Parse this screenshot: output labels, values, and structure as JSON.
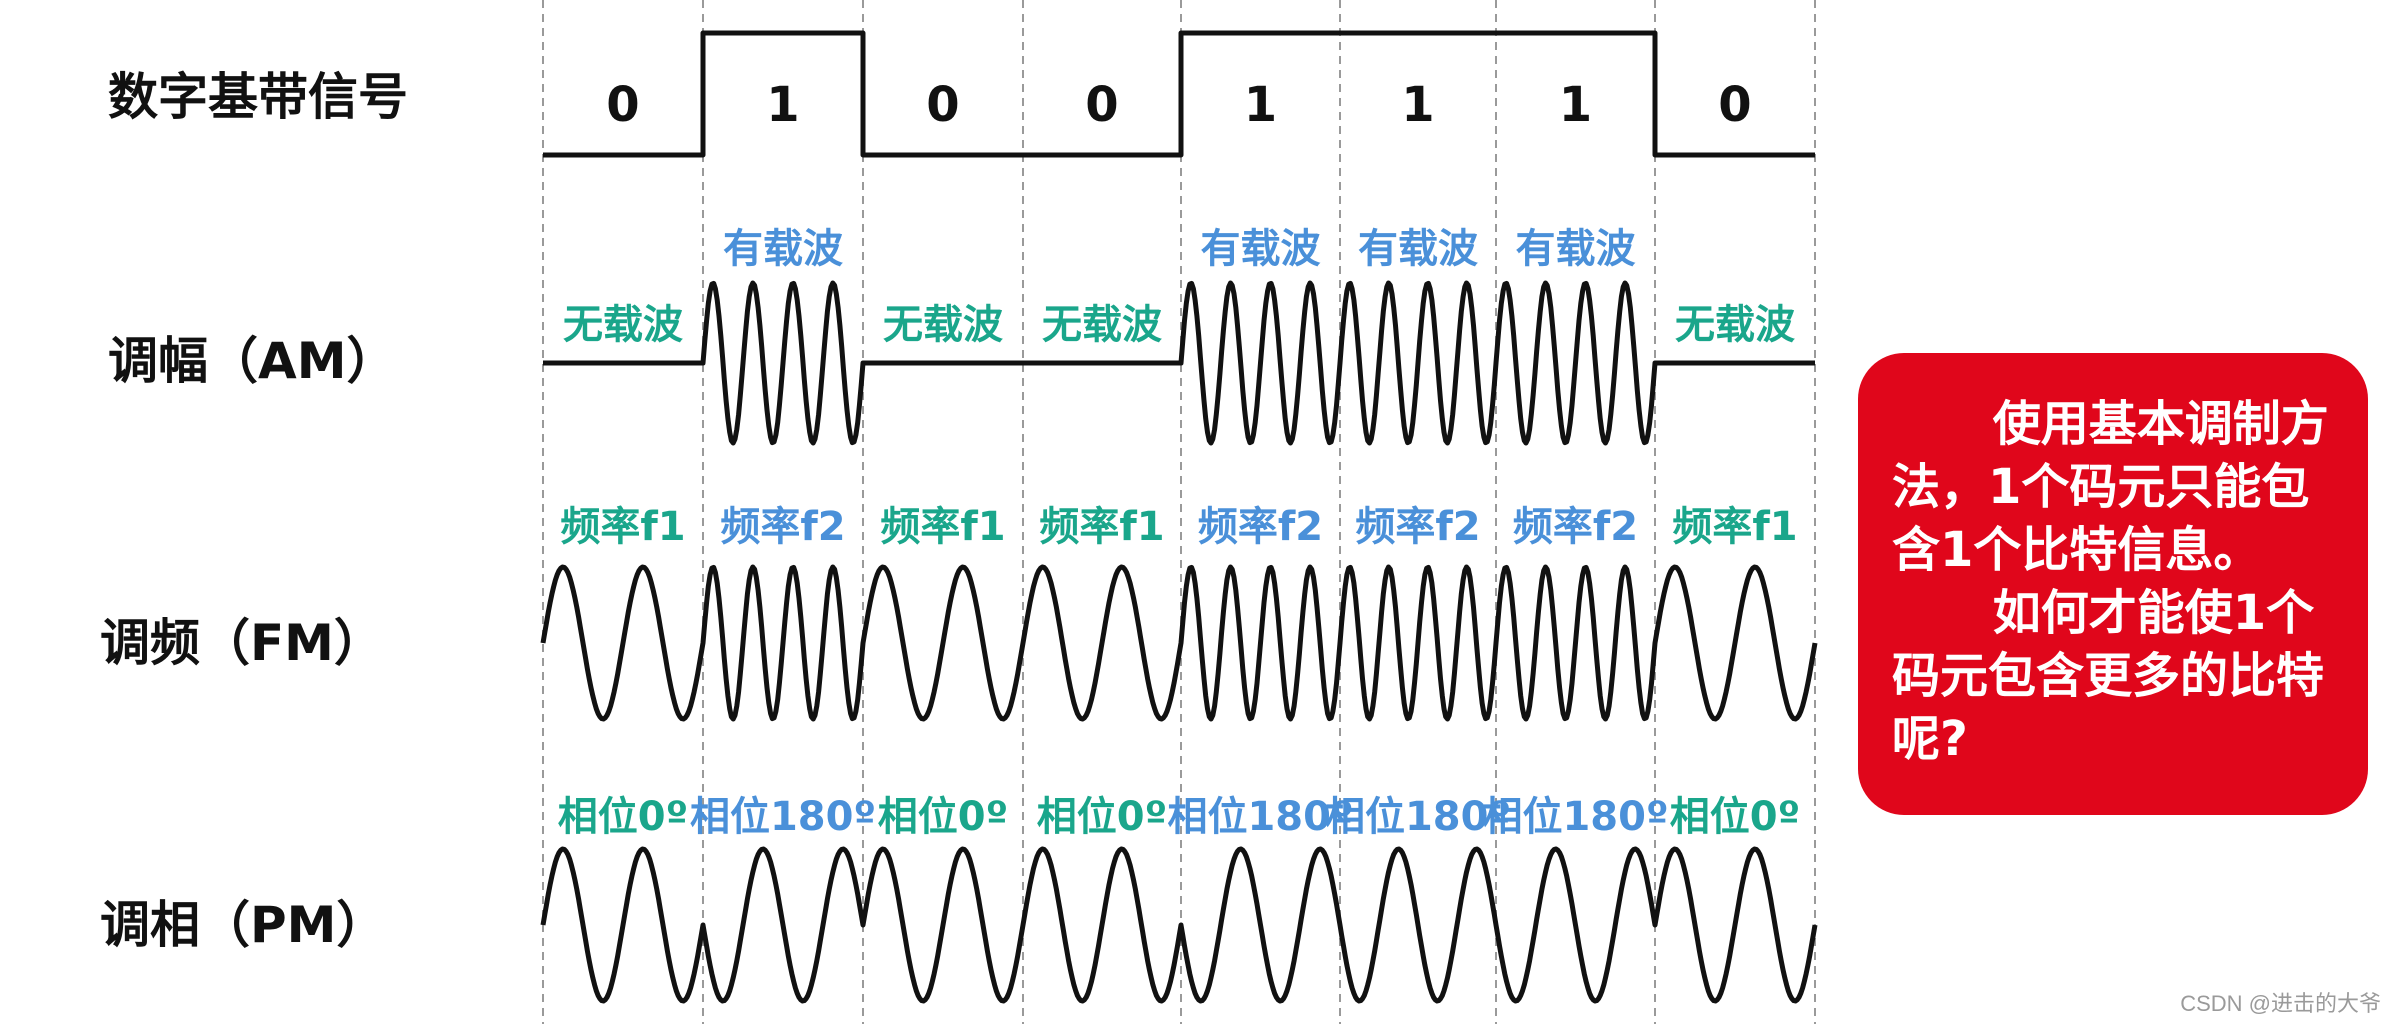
{
  "colors": {
    "amp_none": "#1aa68b",
    "amp_carrier": "#4a90d9",
    "freq_f1": "#1aa68b",
    "freq_f2": "#4a90d9",
    "phase_0": "#1aa68b",
    "phase_180": "#4a90d9",
    "callout_bg": "#e0061b",
    "callout_text": "#ffffff"
  },
  "rows": {
    "digital": "数字基带信号",
    "am": "调幅（AM）",
    "fm": "调频（FM）",
    "pm": "调相（PM）"
  },
  "bits": [
    "0",
    "1",
    "0",
    "0",
    "1",
    "1",
    "1",
    "0"
  ],
  "am_labels": [
    "无载波",
    "有载波",
    "无载波",
    "无载波",
    "有载波",
    "有载波",
    "有载波",
    "无载波"
  ],
  "fm_labels": [
    "频率f1",
    "频率f2",
    "频率f1",
    "频率f1",
    "频率f2",
    "频率f2",
    "频率f2",
    "频率f1"
  ],
  "pm_labels": [
    "相位0º",
    "相位180º",
    "相位0º",
    "相位0º",
    "相位180º",
    "相位180º",
    "相位180º",
    "相位0º"
  ],
  "callout": {
    "line1": "使用基本调制方法，1个码元只能包含1个比特信息。",
    "line2": "如何才能使1个码元包含更多的比特呢?"
  },
  "watermark": "CSDN @进击的大爷"
}
